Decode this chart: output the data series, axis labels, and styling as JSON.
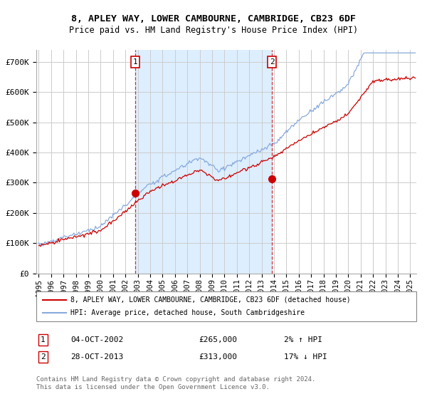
{
  "title": "8, APLEY WAY, LOWER CAMBOURNE, CAMBRIDGE, CB23 6DF",
  "subtitle": "Price paid vs. HM Land Registry's House Price Index (HPI)",
  "ylabel_ticks": [
    "£0",
    "£100K",
    "£200K",
    "£300K",
    "£400K",
    "£500K",
    "£600K",
    "£700K"
  ],
  "ytick_values": [
    0,
    100000,
    200000,
    300000,
    400000,
    500000,
    600000,
    700000
  ],
  "ylim": [
    0,
    740000
  ],
  "xlim_start": 1994.8,
  "xlim_end": 2025.5,
  "purchase1_x": 2002.78,
  "purchase1_y": 265000,
  "purchase1_label": "1",
  "purchase1_date": "04-OCT-2002",
  "purchase1_price": "£265,000",
  "purchase1_hpi": "2% ↑ HPI",
  "purchase2_x": 2013.83,
  "purchase2_y": 313000,
  "purchase2_label": "2",
  "purchase2_date": "28-OCT-2013",
  "purchase2_price": "£313,000",
  "purchase2_hpi": "17% ↓ HPI",
  "line_color_red": "#cc0000",
  "line_color_blue": "#88aadd",
  "shade_color": "#ddeeff",
  "background_color": "#ffffff",
  "grid_color": "#cccccc",
  "legend_label_red": "8, APLEY WAY, LOWER CAMBOURNE, CAMBRIDGE, CB23 6DF (detached house)",
  "legend_label_blue": "HPI: Average price, detached house, South Cambridgeshire",
  "footer_text": "Contains HM Land Registry data © Crown copyright and database right 2024.\nThis data is licensed under the Open Government Licence v3.0.",
  "xtick_years": [
    1995,
    1996,
    1997,
    1998,
    1999,
    2000,
    2001,
    2002,
    2003,
    2004,
    2005,
    2006,
    2007,
    2008,
    2009,
    2010,
    2011,
    2012,
    2013,
    2014,
    2015,
    2016,
    2017,
    2018,
    2019,
    2020,
    2021,
    2022,
    2023,
    2024,
    2025
  ]
}
